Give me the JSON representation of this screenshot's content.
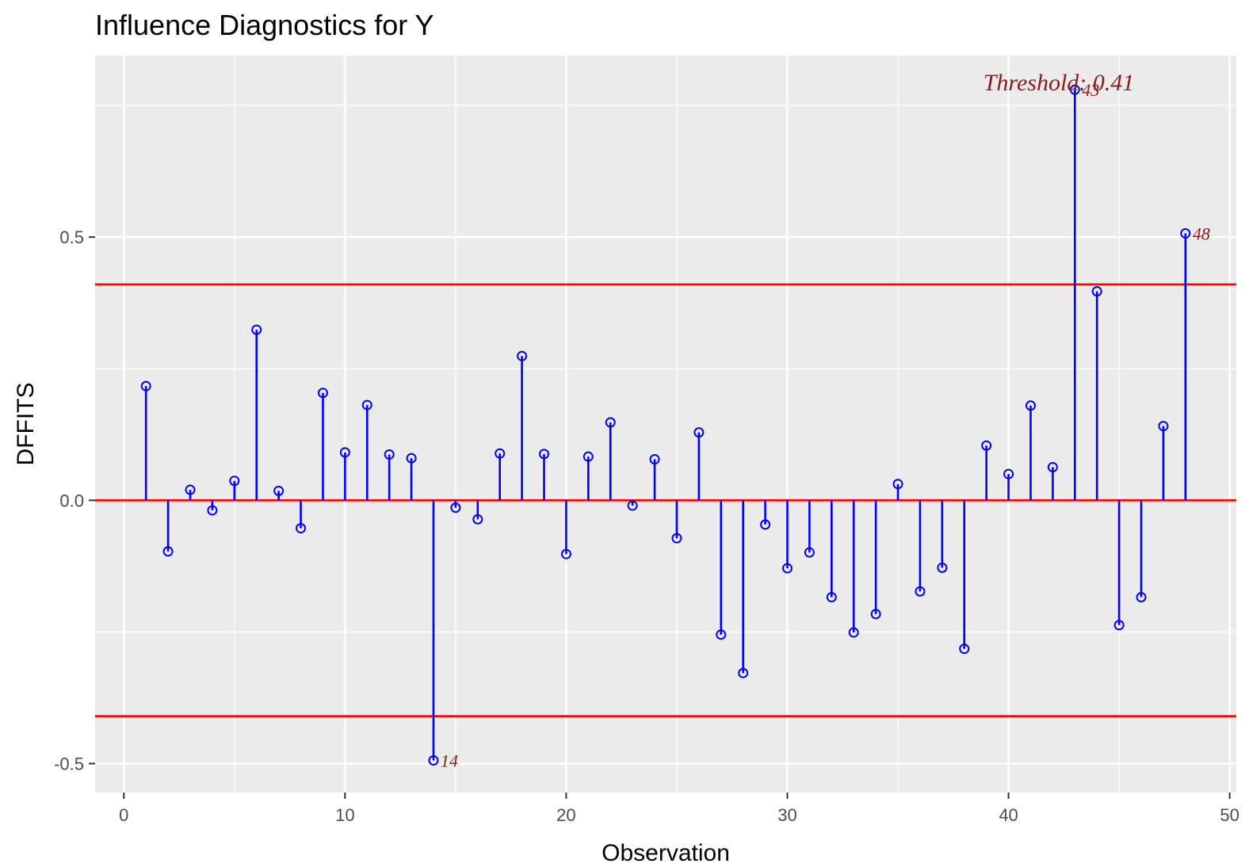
{
  "chart_data": {
    "type": "stem",
    "title": "Influence Diagnostics for Y",
    "xlabel": "Observation",
    "ylabel": "DFFITS",
    "xlim": [
      -1.3,
      50.3
    ],
    "ylim": [
      -0.555,
      0.845
    ],
    "x_ticks": [
      0,
      10,
      20,
      30,
      40,
      50
    ],
    "x_tick_labels": [
      "0",
      "10",
      "20",
      "30",
      "40",
      "50"
    ],
    "y_ticks": [
      -0.5,
      0.0,
      0.5
    ],
    "y_tick_labels": [
      "-0.5",
      "0.0",
      "0.5"
    ],
    "threshold": 0.41,
    "threshold_label": "Threshold: 0.41",
    "reference_lines": [
      0.41,
      0.0,
      -0.41
    ],
    "colors": {
      "stem": "#0000ff",
      "reference": "#ff0000",
      "label": "#8b1a1a",
      "panel": "#ebebeb",
      "grid": "#ffffff"
    },
    "x": [
      1,
      2,
      3,
      4,
      5,
      6,
      7,
      8,
      9,
      10,
      11,
      12,
      13,
      14,
      15,
      16,
      17,
      18,
      19,
      20,
      21,
      22,
      23,
      24,
      25,
      26,
      27,
      28,
      29,
      30,
      31,
      32,
      33,
      34,
      35,
      36,
      37,
      38,
      39,
      40,
      41,
      42,
      43,
      44,
      45,
      46,
      47,
      48
    ],
    "values": [
      0.217,
      -0.097,
      0.02,
      -0.019,
      0.037,
      0.324,
      0.018,
      -0.053,
      0.204,
      0.091,
      0.181,
      0.087,
      0.08,
      -0.494,
      -0.014,
      -0.036,
      0.089,
      0.274,
      0.088,
      -0.102,
      0.083,
      0.148,
      -0.01,
      0.078,
      -0.072,
      0.129,
      -0.255,
      -0.328,
      -0.046,
      -0.129,
      -0.099,
      -0.184,
      -0.251,
      -0.216,
      0.031,
      -0.173,
      -0.128,
      -0.282,
      0.104,
      0.05,
      0.18,
      0.063,
      0.78,
      0.397,
      -0.237,
      -0.184,
      0.141,
      0.507
    ],
    "labeled_points": [
      {
        "x": 14,
        "label": "14"
      },
      {
        "x": 43,
        "label": "43"
      },
      {
        "x": 48,
        "label": "48"
      }
    ]
  }
}
